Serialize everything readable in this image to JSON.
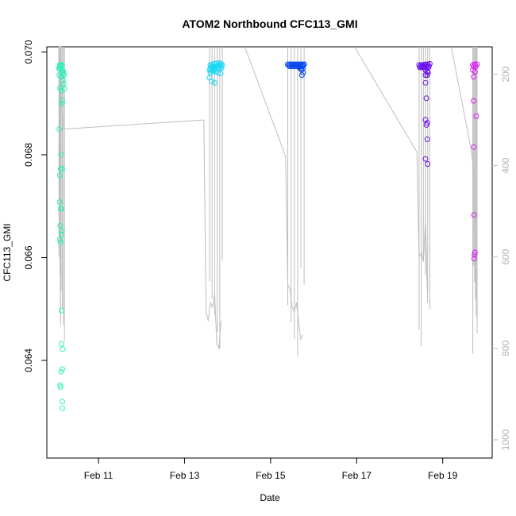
{
  "chart_data": {
    "type": "scatter",
    "title": "ATOM2 Northbound CFC113_GMI",
    "xlabel": "Date",
    "ylabel": "CFC113_GMI",
    "x_ticks": [
      "Feb 11",
      "Feb 13",
      "Feb 15",
      "Feb 17",
      "Feb 19"
    ],
    "x_tick_days": [
      11,
      13,
      15,
      17,
      19
    ],
    "xlim": [
      9.8,
      20.15
    ],
    "ylim": [
      0.0621,
      0.0701
    ],
    "y_ticks": [
      0.064,
      0.066,
      0.068,
      0.07
    ],
    "y_tick_labels": [
      "0.064",
      "0.066",
      "0.068",
      "0.070"
    ],
    "y2_ticks": [
      200,
      400,
      600,
      800,
      1000
    ],
    "y2_tick_labels": [
      "200",
      "400",
      "600",
      "800",
      "1000"
    ],
    "y2lim": [
      1040,
      140
    ],
    "y2_color": "#bebebe",
    "grid": false,
    "legend": "none",
    "series": [
      {
        "color": "#2ef0b8",
        "x": [
          10.1,
          10.12,
          10.15,
          10.1,
          10.12,
          10.08,
          10.1,
          10.14,
          10.16,
          10.18,
          10.18,
          10.2,
          10.09,
          10.13,
          10.17,
          10.19,
          10.21,
          10.1,
          10.14,
          10.09,
          10.15,
          10.16,
          10.13,
          10.1,
          10.12,
          10.16,
          10.1,
          10.14,
          10.12,
          10.11,
          10.15,
          10.1,
          10.14,
          10.12,
          10.16,
          10.14,
          10.14,
          10.11,
          10.17,
          10.12,
          10.16,
          10.13,
          10.16
        ],
        "y": [
          0.06975,
          0.06975,
          0.06975,
          0.06972,
          0.06972,
          0.06968,
          0.06968,
          0.06968,
          0.06965,
          0.06962,
          0.06958,
          0.06955,
          0.06955,
          0.06952,
          0.06945,
          0.06938,
          0.06928,
          0.0693,
          0.06925,
          0.0685,
          0.069,
          0.06905,
          0.068,
          0.0676,
          0.06773,
          0.06773,
          0.06708,
          0.06695,
          0.06695,
          0.06662,
          0.06652,
          0.06635,
          0.06645,
          0.0663,
          0.0632,
          0.06497,
          0.06432,
          0.06352,
          0.06422,
          0.06348,
          0.06383,
          0.06378,
          0.06307
        ]
      },
      {
        "color": "#1ad8f4",
        "x": [
          13.6,
          13.65,
          13.7,
          13.75,
          13.8,
          13.85,
          13.62,
          13.67,
          13.72,
          13.78,
          13.82,
          13.88,
          13.6,
          13.65,
          13.7,
          13.77,
          13.84,
          13.58,
          13.63,
          13.69,
          13.74,
          13.8,
          13.86,
          13.6,
          13.66,
          13.72,
          13.78,
          13.84,
          13.58,
          13.63,
          13.7
        ],
        "y": [
          0.06975,
          0.06976,
          0.06977,
          0.06978,
          0.06978,
          0.06977,
          0.06972,
          0.06972,
          0.06973,
          0.06974,
          0.06974,
          0.06975,
          0.06968,
          0.06969,
          0.0697,
          0.06971,
          0.06972,
          0.06965,
          0.06965,
          0.06966,
          0.06968,
          0.06968,
          0.06969,
          0.0696,
          0.06962,
          0.06962,
          0.0696,
          0.06958,
          0.0695,
          0.06943,
          0.0694
        ]
      },
      {
        "color": "#0a48f0",
        "x": [
          15.4,
          15.45,
          15.5,
          15.55,
          15.6,
          15.65,
          15.7,
          15.75,
          15.78,
          15.42,
          15.48,
          15.53,
          15.58,
          15.63,
          15.68,
          15.72,
          15.76,
          15.44,
          15.5,
          15.56,
          15.62,
          15.68,
          15.74,
          15.66,
          15.7,
          15.75,
          15.72,
          15.76,
          15.73
        ],
        "y": [
          0.06976,
          0.06976,
          0.06976,
          0.06976,
          0.06976,
          0.06976,
          0.06976,
          0.06976,
          0.06976,
          0.06974,
          0.06974,
          0.06974,
          0.06974,
          0.06974,
          0.06974,
          0.06974,
          0.06974,
          0.06972,
          0.06972,
          0.06972,
          0.06972,
          0.06972,
          0.06972,
          0.0697,
          0.06968,
          0.06968,
          0.06965,
          0.0696,
          0.06955
        ]
      },
      {
        "color": "#6a10ee",
        "x": [
          18.45,
          18.5,
          18.55,
          18.6,
          18.65,
          18.7,
          18.48,
          18.53,
          18.58,
          18.63,
          18.68,
          18.47,
          18.52,
          18.57,
          18.62,
          18.67,
          18.6,
          18.64,
          18.66,
          18.6,
          18.64,
          18.6,
          18.62,
          18.6,
          18.64,
          18.62,
          18.64,
          18.6,
          18.65
        ],
        "y": [
          0.06975,
          0.06975,
          0.06975,
          0.06976,
          0.06976,
          0.06977,
          0.06972,
          0.06972,
          0.06973,
          0.06973,
          0.06973,
          0.0697,
          0.0697,
          0.0697,
          0.0697,
          0.0697,
          0.06965,
          0.06962,
          0.0696,
          0.06955,
          0.06955,
          0.0694,
          0.0691,
          0.06868,
          0.06862,
          0.06858,
          0.0683,
          0.06792,
          0.06782
        ]
      },
      {
        "color": "#d81ef2",
        "x": [
          19.7,
          19.75,
          19.8,
          19.72,
          19.77,
          19.7,
          19.75,
          19.72,
          19.72,
          19.78,
          19.72,
          19.73,
          19.75,
          19.74,
          19.73
        ],
        "y": [
          0.06975,
          0.06976,
          0.06976,
          0.06972,
          0.06972,
          0.06965,
          0.06962,
          0.06952,
          0.06905,
          0.06875,
          0.06815,
          0.06683,
          0.0661,
          0.06605,
          0.06598
        ]
      }
    ],
    "pressure_profiles": [
      {
        "x": [
          10.08,
          10.12,
          10.12,
          10.08,
          10.18
        ],
        "y": [
          140,
          140,
          750,
          140,
          320
        ]
      },
      {
        "x": [
          10.18,
          13.45,
          13.5,
          13.55,
          13.6,
          13.65,
          13.7,
          13.75,
          13.8,
          13.85
        ],
        "y": [
          320,
          300,
          720,
          740,
          700,
          710,
          680,
          790,
          800,
          740
        ]
      },
      {
        "x": [
          14.4,
          15.35,
          15.4,
          15.45,
          15.5,
          15.55,
          15.6,
          15.65,
          15.7,
          15.75
        ],
        "y": [
          140,
          380,
          660,
          670,
          710,
          720,
          700,
          740,
          780,
          770
        ]
      },
      {
        "x": [
          16.95,
          18.4,
          18.45,
          18.5,
          18.55,
          18.6,
          18.65
        ],
        "y": [
          140,
          370,
          600,
          590,
          610,
          520,
          700
        ]
      },
      {
        "x": [
          19.2,
          19.65,
          19.72,
          19.75
        ],
        "y": [
          140,
          360,
          410,
          650
        ]
      }
    ]
  }
}
